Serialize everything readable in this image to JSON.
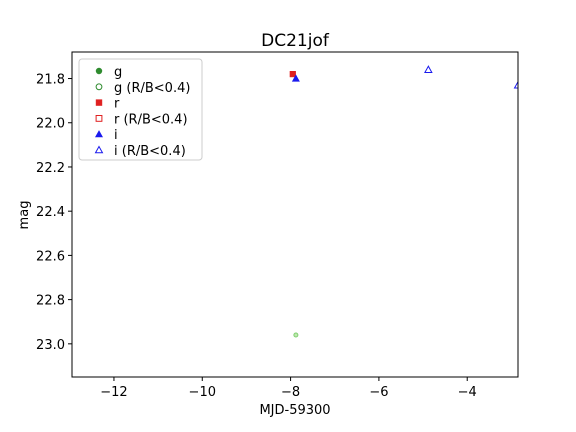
{
  "chart_data": {
    "type": "scatter",
    "title": "DC21jof",
    "xlabel": "MJD-59300",
    "ylabel": "mag",
    "xlim": [
      -12.95,
      -2.85
    ],
    "ylim": [
      23.15,
      21.68
    ],
    "y_inverted": true,
    "xticks": [
      -12,
      -10,
      -8,
      -6,
      -4
    ],
    "xtick_labels": [
      "−12",
      "−10",
      "−8",
      "−6",
      "−4"
    ],
    "yticks": [
      21.8,
      22.0,
      22.2,
      22.4,
      22.6,
      22.8,
      23.0
    ],
    "ytick_labels": [
      "21.8",
      "22.0",
      "22.2",
      "22.4",
      "22.6",
      "22.8",
      "23.0"
    ],
    "grid": false,
    "legend_position": "top-left",
    "series": [
      {
        "name": "g",
        "marker": "circle",
        "filled": true,
        "color": "#2e8b2e",
        "points": []
      },
      {
        "name": "g (R/B<0.4)",
        "marker": "circle",
        "filled": false,
        "color": "#2e8b2e",
        "points": [
          [
            -7.88,
            22.96
          ]
        ]
      },
      {
        "name": "r",
        "marker": "square",
        "filled": true,
        "color": "#e02020",
        "points": [
          [
            -7.95,
            21.78
          ]
        ]
      },
      {
        "name": "r (R/B<0.4)",
        "marker": "square",
        "filled": false,
        "color": "#e02020",
        "points": []
      },
      {
        "name": "i",
        "marker": "triangle",
        "filled": true,
        "color": "#1a1aee",
        "points": [
          [
            -7.88,
            21.8
          ]
        ]
      },
      {
        "name": "i (R/B<0.4)",
        "marker": "triangle",
        "filled": false,
        "color": "#1a1aee",
        "points": [
          [
            -4.88,
            21.76
          ],
          [
            -2.85,
            21.83
          ]
        ]
      }
    ]
  }
}
